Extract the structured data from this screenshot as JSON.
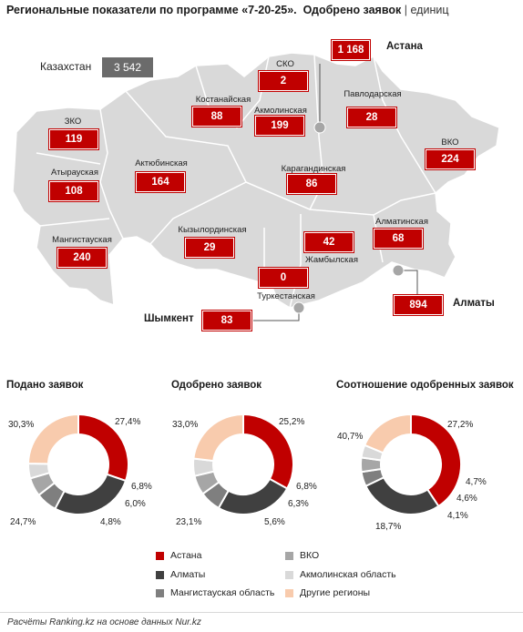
{
  "header": {
    "title": "Региональные показатели по программе «7-20-25».",
    "subtitle": "Одобрено заявок",
    "separator": "|",
    "unit": "единиц"
  },
  "kazakhstan": {
    "label": "Казахстан",
    "value": "3 542"
  },
  "regions": [
    {
      "name": "",
      "value": "1 168"
    },
    {
      "name": "СКО",
      "value": "2"
    },
    {
      "name": "Костанайская",
      "value": "88"
    },
    {
      "name": "Акмолинская",
      "value": "199"
    },
    {
      "name": "Павлодарская",
      "value": "28"
    },
    {
      "name": "ЗКО",
      "value": "119"
    },
    {
      "name": "ВКО",
      "value": "224"
    },
    {
      "name": "Актюбинская",
      "value": "164"
    },
    {
      "name": "Атырауская",
      "value": "108"
    },
    {
      "name": "Карагандинская",
      "value": "86"
    },
    {
      "name": "Мангистауская",
      "value": "240"
    },
    {
      "name": "Кызылординская",
      "value": "29"
    },
    {
      "name": "Алматинская",
      "value": "68"
    },
    {
      "name": "",
      "value": "42"
    },
    {
      "name": "Жамбылская",
      "value": ""
    },
    {
      "name": "",
      "value": "0"
    },
    {
      "name": "Туркестанская",
      "value": ""
    },
    {
      "name": "",
      "value": "83"
    },
    {
      "name": "",
      "value": "894"
    }
  ],
  "cities": {
    "astana": "Астана",
    "shymkent": "Шымкент",
    "almaty": "Алматы"
  },
  "colors": {
    "astana": "#c00000",
    "almaty": "#404040",
    "mangistau": "#7f7f7f",
    "vko": "#a6a6a6",
    "akmola": "#d9d9d9",
    "other": "#f8cbad",
    "map_fill": "#d9d9d9",
    "map_border": "#ffffff",
    "marker": "#a6a6a6"
  },
  "chart_data": [
    {
      "type": "pie",
      "title": "Подано заявок",
      "categories": [
        "Астана",
        "Алматы",
        "Мангистауская область",
        "ВКО",
        "Акмолинская область",
        "Другие регионы"
      ],
      "values": [
        30.3,
        27.4,
        6.8,
        6.0,
        4.8,
        24.7
      ],
      "labels": [
        "30,3%",
        "27,4%",
        "6,8%",
        "6,0%",
        "4,8%",
        "24,7%"
      ]
    },
    {
      "type": "pie",
      "title": "Одобрено заявок",
      "categories": [
        "Астана",
        "Алматы",
        "Мангистауская область",
        "ВКО",
        "Акмолинская область",
        "Другие регионы"
      ],
      "values": [
        33.0,
        25.2,
        6.8,
        6.3,
        5.6,
        23.1
      ],
      "labels": [
        "33,0%",
        "25,2%",
        "6,8%",
        "6,3%",
        "5,6%",
        "23,1%"
      ]
    },
    {
      "type": "pie",
      "title": "Соотношение одобренных заявок",
      "categories": [
        "Астана",
        "Алматы",
        "Мангистауская область",
        "ВКО",
        "Акмолинская область",
        "Другие регионы"
      ],
      "values": [
        40.7,
        27.2,
        4.7,
        4.6,
        4.1,
        18.7
      ],
      "labels": [
        "40,7%",
        "27,2%",
        "4,7%",
        "4,6%",
        "4,1%",
        "18,7%"
      ]
    }
  ],
  "legend": [
    "Астана",
    "ВКО",
    "Алматы",
    "Акмолинская область",
    "Мангистауская область",
    "Другие регионы"
  ],
  "footer": {
    "source": "Расчёты Ranking.kz на основе данных Nur.kz"
  }
}
